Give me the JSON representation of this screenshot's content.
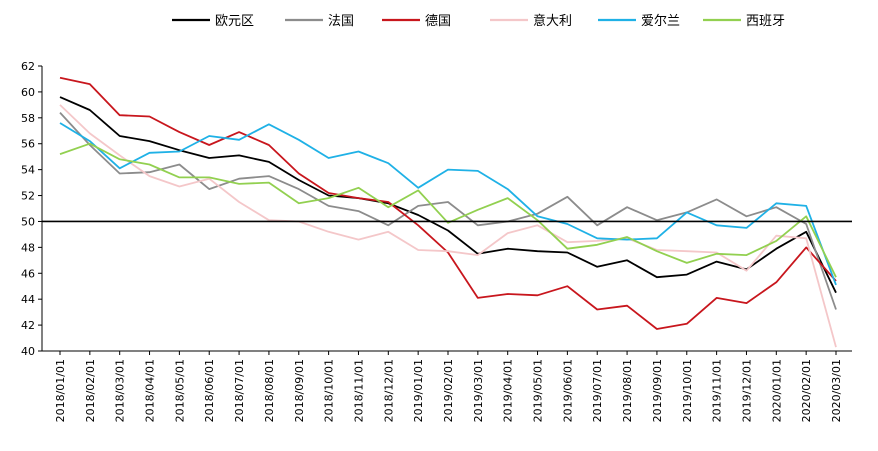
{
  "chart_data": {
    "type": "line",
    "title": "",
    "xlabel": "",
    "ylabel": "",
    "ylim": [
      40,
      62
    ],
    "yticks": [
      40,
      42,
      44,
      46,
      48,
      50,
      52,
      54,
      56,
      58,
      60,
      62
    ],
    "reference_line": 50,
    "grid": false,
    "legend_position": "top",
    "x": [
      "2018/01/01",
      "2018/02/01",
      "2018/03/01",
      "2018/04/01",
      "2018/05/01",
      "2018/06/01",
      "2018/07/01",
      "2018/08/01",
      "2018/09/01",
      "2018/10/01",
      "2018/11/01",
      "2018/12/01",
      "2019/01/01",
      "2019/02/01",
      "2019/03/01",
      "2019/04/01",
      "2019/05/01",
      "2019/06/01",
      "2019/07/01",
      "2019/08/01",
      "2019/09/01",
      "2019/10/01",
      "2019/11/01",
      "2019/12/01",
      "2020/01/01",
      "2020/02/01",
      "2020/03/01"
    ],
    "series": [
      {
        "name": "欧元区",
        "color": "#000000",
        "values": [
          59.6,
          58.6,
          56.6,
          56.2,
          55.5,
          54.9,
          55.1,
          54.6,
          53.2,
          52.0,
          51.8,
          51.4,
          50.5,
          49.3,
          47.5,
          47.9,
          47.7,
          47.6,
          46.5,
          47.0,
          45.7,
          45.9,
          46.9,
          46.3,
          47.9,
          49.2,
          44.5
        ]
      },
      {
        "name": "法国",
        "color": "#8c8c8c",
        "values": [
          58.4,
          55.9,
          53.7,
          53.8,
          54.4,
          52.5,
          53.3,
          53.5,
          52.5,
          51.2,
          50.8,
          49.7,
          51.2,
          51.5,
          49.7,
          50.0,
          50.6,
          51.9,
          49.7,
          51.1,
          50.1,
          50.7,
          51.7,
          50.4,
          51.1,
          49.8,
          43.2
        ]
      },
      {
        "name": "德国",
        "color": "#c8161d",
        "values": [
          61.1,
          60.6,
          58.2,
          58.1,
          56.9,
          55.9,
          56.9,
          55.9,
          53.7,
          52.2,
          51.8,
          51.5,
          49.7,
          47.6,
          44.1,
          44.4,
          44.3,
          45.0,
          43.2,
          43.5,
          41.7,
          42.1,
          44.1,
          43.7,
          45.3,
          48.0,
          45.4
        ]
      },
      {
        "name": "意大利",
        "color": "#f4c7c9",
        "values": [
          59.0,
          56.8,
          55.1,
          53.5,
          52.7,
          53.3,
          51.5,
          50.1,
          50.0,
          49.2,
          48.6,
          49.2,
          47.8,
          47.7,
          47.4,
          49.1,
          49.7,
          48.4,
          48.5,
          48.7,
          47.8,
          47.7,
          47.6,
          46.2,
          48.9,
          48.7,
          40.3
        ]
      },
      {
        "name": "爱尔兰",
        "color": "#1fb1e6",
        "values": [
          57.6,
          56.2,
          54.1,
          55.3,
          55.4,
          56.6,
          56.3,
          57.5,
          56.3,
          54.9,
          55.4,
          54.5,
          52.6,
          54.0,
          53.9,
          52.5,
          50.4,
          49.8,
          48.7,
          48.6,
          48.7,
          50.7,
          49.7,
          49.5,
          51.4,
          51.2,
          45.1
        ]
      },
      {
        "name": "西班牙",
        "color": "#92d050",
        "values": [
          55.2,
          56.0,
          54.8,
          54.4,
          53.4,
          53.4,
          52.9,
          53.0,
          51.4,
          51.8,
          52.6,
          51.1,
          52.4,
          49.9,
          50.9,
          51.8,
          50.1,
          47.9,
          48.2,
          48.8,
          47.7,
          46.8,
          47.5,
          47.4,
          48.5,
          50.4,
          45.7
        ]
      }
    ]
  }
}
